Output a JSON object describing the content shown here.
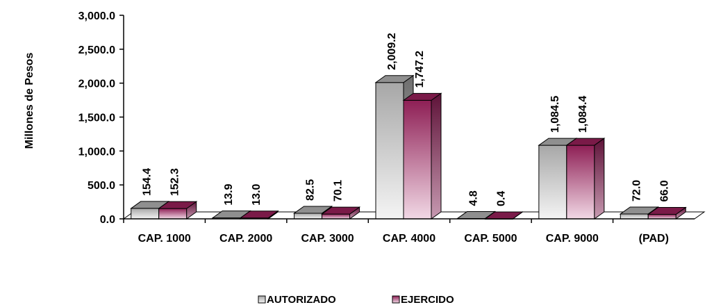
{
  "chart_data": {
    "type": "bar",
    "title": "",
    "ylabel": "Millones de Pesos",
    "xlabel": "",
    "ylim": [
      0,
      3000
    ],
    "yticks": [
      "0.0",
      "500.0",
      "1,000.0",
      "1,500.0",
      "2,000.0",
      "2,500.0",
      "3,000.0"
    ],
    "categories": [
      "CAP. 1000",
      "CAP. 2000",
      "CAP. 3000",
      "CAP. 4000",
      "CAP. 5000",
      "CAP. 9000",
      "(PAD)"
    ],
    "series": [
      {
        "name": "AUTORIZADO",
        "color": "#a0a0a0",
        "values": [
          154.4,
          13.9,
          82.5,
          2009.2,
          4.8,
          1084.5,
          72.0
        ],
        "labels": [
          "154.4",
          "13.9",
          "82.5",
          "2,009.2",
          "4.8",
          "1,084.5",
          "72.0"
        ]
      },
      {
        "name": "EJERCIDO",
        "color": "#8b2252",
        "values": [
          152.3,
          13.0,
          70.1,
          1747.2,
          0.4,
          1084.4,
          66.0
        ],
        "labels": [
          "152.3",
          "13.0",
          "70.1",
          "1,747.2",
          "0.4",
          "1,084.4",
          "66.0"
        ]
      }
    ],
    "grid": false,
    "legend_position": "bottom",
    "style": "3d-clustered-column"
  }
}
